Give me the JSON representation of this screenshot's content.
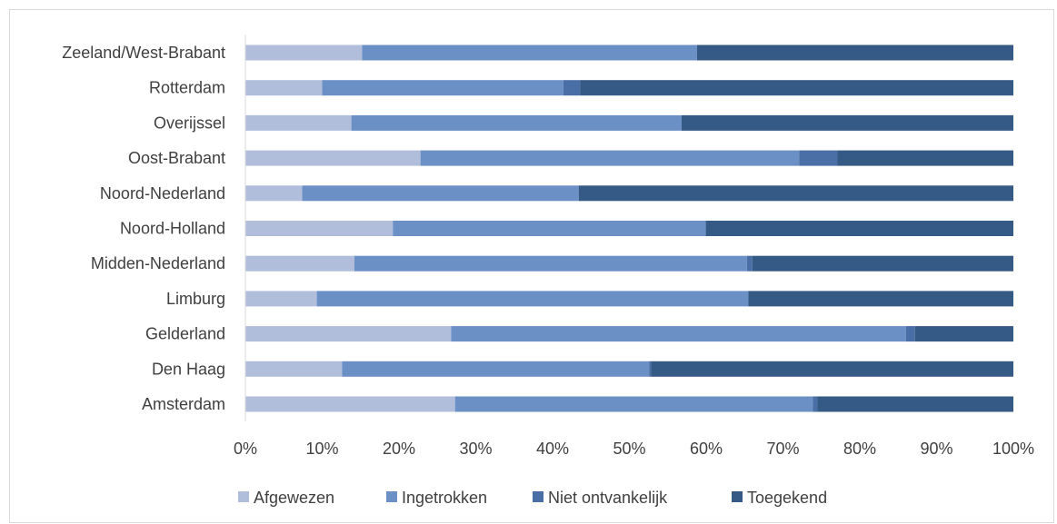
{
  "chart_data": {
    "type": "bar",
    "orientation": "horizontal",
    "stacked": "percent",
    "categories": [
      "Amsterdam",
      "Den Haag",
      "Gelderland",
      "Limburg",
      "Midden-Nederland",
      "Noord-Holland",
      "Noord-Nederland",
      "Oost-Brabant",
      "Overijssel",
      "Rotterdam",
      "Zeeland/West-Brabant"
    ],
    "series": [
      {
        "name": "Afgewezen",
        "color": "#b0bedc",
        "values": [
          27.3,
          12.6,
          26.8,
          9.3,
          14.2,
          19.2,
          7.4,
          22.8,
          13.8,
          10.0,
          15.2
        ]
      },
      {
        "name": "Ingetrokken",
        "color": "#6b90c6",
        "values": [
          46.6,
          40.0,
          59.2,
          56.2,
          51.1,
          40.7,
          36.0,
          49.3,
          43.0,
          31.4,
          43.6
        ]
      },
      {
        "name": "Niet ontvankelijk",
        "color": "#4a6ea6",
        "values": [
          0.6,
          0.2,
          1.2,
          0.0,
          0.7,
          0.1,
          0.0,
          5.0,
          0.0,
          2.2,
          0.0
        ]
      },
      {
        "name": "Toegekend",
        "color": "#365a86",
        "values": [
          25.5,
          47.2,
          12.8,
          34.5,
          34.0,
          40.0,
          56.6,
          22.9,
          43.2,
          56.4,
          41.2
        ]
      }
    ],
    "xlim": [
      0,
      100
    ],
    "x_ticks": [
      "0%",
      "10%",
      "20%",
      "30%",
      "40%",
      "50%",
      "60%",
      "70%",
      "80%",
      "90%",
      "100%"
    ],
    "grid": false,
    "legend_position": "bottom",
    "title": "",
    "xlabel": "",
    "ylabel": ""
  }
}
